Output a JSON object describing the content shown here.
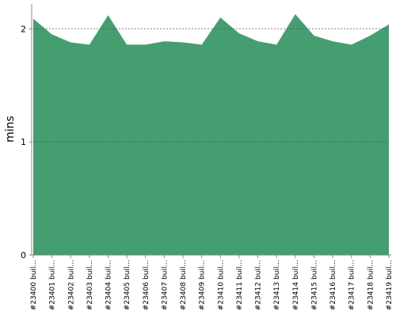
{
  "chart_data": {
    "type": "area",
    "y_label": "mins",
    "categories": [
      "#23400 buil...",
      "#23401 buil...",
      "#23402 buil...",
      "#23403 buil...",
      "#23404 buil...",
      "#23405 buil...",
      "#23406 buil...",
      "#23407 buil...",
      "#23408 buil...",
      "#23409 buil...",
      "#23410 buil...",
      "#23411 buil...",
      "#23412 buil...",
      "#23413 buil...",
      "#23414 buil...",
      "#23415 buil...",
      "#23416 buil...",
      "#23417 buil...",
      "#23418 buil...",
      "#23419 buil..."
    ],
    "series": [
      {
        "name": "build",
        "color": "#459e6f",
        "values": [
          2.09,
          1.95,
          1.88,
          1.86,
          2.12,
          1.86,
          1.86,
          1.89,
          1.88,
          1.86,
          2.1,
          1.96,
          1.89,
          1.86,
          2.13,
          1.94,
          1.89,
          1.86,
          1.94,
          2.04
        ]
      }
    ],
    "ylim": [
      0,
      2.22
    ],
    "yticks": [
      0,
      1,
      2
    ],
    "grid": true
  }
}
